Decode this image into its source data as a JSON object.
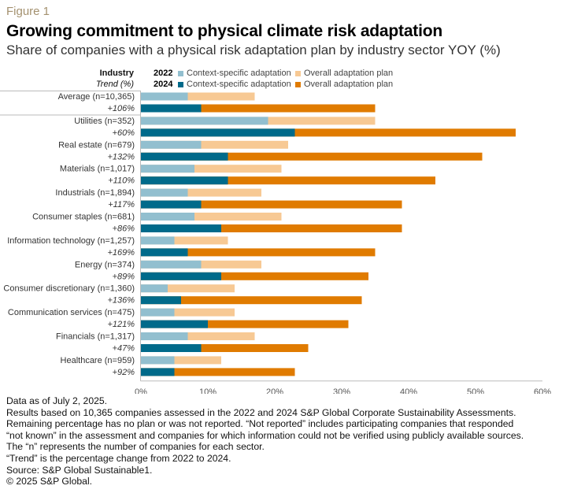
{
  "figure_label": "Figure 1",
  "chart_data": {
    "type": "bar",
    "orientation": "horizontal",
    "stacked": true,
    "title": "Growing commitment to physical climate risk adaptation",
    "subtitle": "Share of companies with a physical risk adaptation plan by industry sector YOY (%)",
    "row_header": "Industry",
    "row_subheader": "Trend (%)",
    "legend": {
      "placement": "top",
      "rows": [
        {
          "year": "2022",
          "items": [
            {
              "label": "Context-specific adaptation",
              "color": "#92bfcf"
            },
            {
              "label": "Overall adaptation plan",
              "color": "#f7c994"
            }
          ]
        },
        {
          "year": "2024",
          "items": [
            {
              "label": "Context-specific adaptation",
              "color": "#006a8a"
            },
            {
              "label": "Overall adaptation plan",
              "color": "#e07b00"
            }
          ]
        }
      ]
    },
    "xlim": [
      0,
      60
    ],
    "xticks": [
      "0%",
      "10%",
      "20%",
      "30%",
      "40%",
      "50%",
      "60%"
    ],
    "xtick_values": [
      0,
      10,
      20,
      30,
      40,
      50,
      60
    ],
    "categories": [
      {
        "label": "Average (n=10,365)",
        "trend": "+106%",
        "y2022": {
          "context": 7,
          "overall": 17
        },
        "y2024": {
          "context": 9,
          "overall": 35
        }
      },
      {
        "label": "Utilities (n=352)",
        "trend": "+60%",
        "y2022": {
          "context": 19,
          "overall": 35
        },
        "y2024": {
          "context": 23,
          "overall": 56
        }
      },
      {
        "label": "Real estate (n=679)",
        "trend": "+132%",
        "y2022": {
          "context": 9,
          "overall": 22
        },
        "y2024": {
          "context": 13,
          "overall": 51
        }
      },
      {
        "label": "Materials (n=1,017)",
        "trend": "+110%",
        "y2022": {
          "context": 8,
          "overall": 21
        },
        "y2024": {
          "context": 13,
          "overall": 44
        }
      },
      {
        "label": "Industrials (n=1,894)",
        "trend": "+117%",
        "y2022": {
          "context": 7,
          "overall": 18
        },
        "y2024": {
          "context": 9,
          "overall": 39
        }
      },
      {
        "label": "Consumer staples (n=681)",
        "trend": "+86%",
        "y2022": {
          "context": 8,
          "overall": 21
        },
        "y2024": {
          "context": 12,
          "overall": 39
        }
      },
      {
        "label": "Information technology (n=1,257)",
        "trend": "+169%",
        "y2022": {
          "context": 5,
          "overall": 13
        },
        "y2024": {
          "context": 7,
          "overall": 35
        }
      },
      {
        "label": "Energy (n=374)",
        "trend": "+89%",
        "y2022": {
          "context": 9,
          "overall": 18
        },
        "y2024": {
          "context": 12,
          "overall": 34
        }
      },
      {
        "label": "Consumer discretionary (n=1,360)",
        "trend": "+136%",
        "y2022": {
          "context": 4,
          "overall": 14
        },
        "y2024": {
          "context": 6,
          "overall": 33
        }
      },
      {
        "label": "Communication services (n=475)",
        "trend": "+121%",
        "y2022": {
          "context": 5,
          "overall": 14
        },
        "y2024": {
          "context": 10,
          "overall": 31
        }
      },
      {
        "label": "Financials (n=1,317)",
        "trend": "+47%",
        "y2022": {
          "context": 7,
          "overall": 17
        },
        "y2024": {
          "context": 9,
          "overall": 25
        }
      },
      {
        "label": "Healthcare (n=959)",
        "trend": "+92%",
        "y2022": {
          "context": 5,
          "overall": 12
        },
        "y2024": {
          "context": 5,
          "overall": 23
        }
      }
    ],
    "notes": "Bar ends show cumulative values: context-specific segment, and overall adaptation plan as total bar length."
  },
  "footer": [
    "Data as of July 2, 2025.",
    "Results based on 10,365 companies assessed in the 2022 and 2024 S&P Global Corporate Sustainability Assessments.",
    "Remaining percentage has no plan or was not reported. “Not reported” includes participating companies that responded",
    "“not known” in the assessment and companies for which information could not be verified using publicly available sources.",
    "The “n” represents the number of companies for each sector.",
    "“Trend” is the percentage change from 2022 to 2024.",
    "Source: S&P Global Sustainable1.",
    "© 2025 S&P Global."
  ]
}
